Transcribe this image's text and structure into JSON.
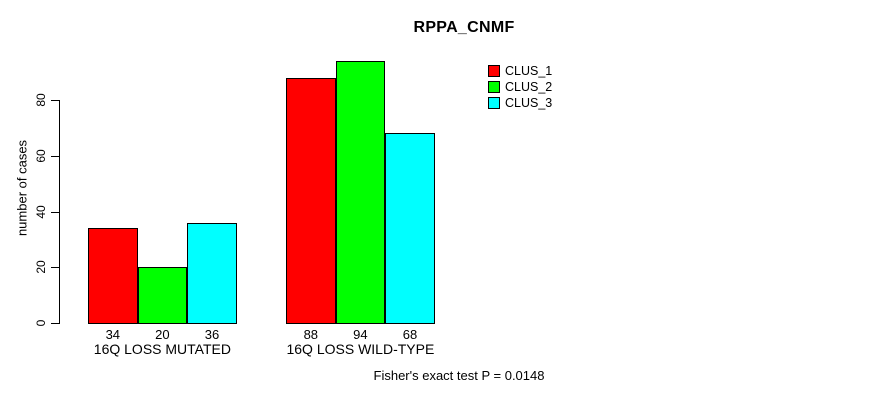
{
  "title": "RPPA_CNMF",
  "footer": "Fisher's exact test P = 0.0148",
  "legend": {
    "items": [
      {
        "label": "CLUS_1",
        "color": "#ff0000"
      },
      {
        "label": "CLUS_2",
        "color": "#00ff00"
      },
      {
        "label": "CLUS_3",
        "color": "#00ffff"
      }
    ]
  },
  "chart_data": {
    "type": "bar",
    "title": "RPPA_CNMF",
    "categories": [
      "16Q LOSS MUTATED",
      "16Q LOSS WILD-TYPE"
    ],
    "series": [
      {
        "name": "CLUS_1",
        "color": "#ff0000",
        "values": [
          34,
          88
        ]
      },
      {
        "name": "CLUS_2",
        "color": "#00ff00",
        "values": [
          20,
          94
        ]
      },
      {
        "name": "CLUS_3",
        "color": "#00ffff",
        "values": [
          36,
          68
        ]
      }
    ],
    "bar_value_labels": [
      [
        34,
        20,
        36
      ],
      [
        88,
        94,
        68
      ]
    ],
    "xlabel": "",
    "ylabel": "number of cases",
    "yticks": [
      0,
      20,
      40,
      60,
      80
    ],
    "ylim": [
      0,
      94
    ],
    "grid": false,
    "legend_position": "top-right",
    "annotation": "Fisher's exact test P = 0.0148"
  }
}
